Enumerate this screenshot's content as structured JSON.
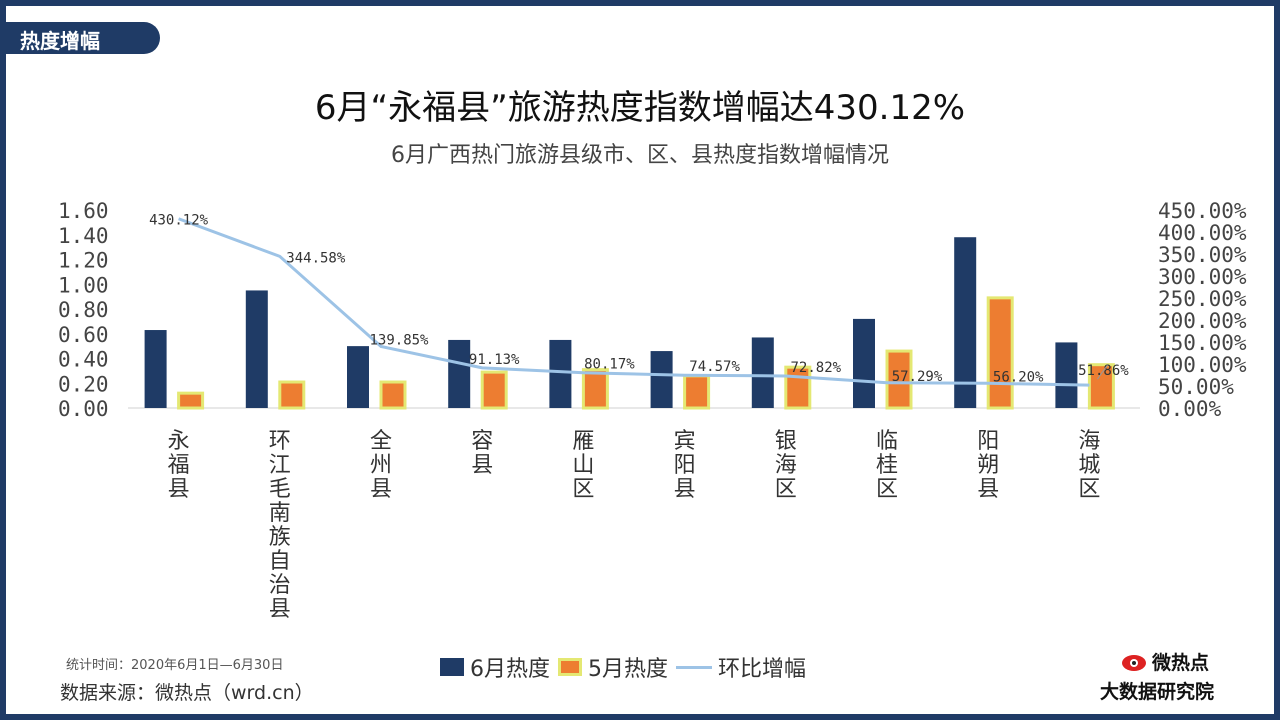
{
  "badge": "热度增幅",
  "title": "6月“永福县”旅游热度指数增幅达430.12%",
  "subtitle": "6月广西热门旅游县级市、区、县热度指数增幅情况",
  "footnote": "统计时间：2020年6月1日—6月30日",
  "source": "数据来源：微热点（wrd.cn）",
  "logo": {
    "brand": "微热点",
    "institute": "大数据研究院"
  },
  "legend": {
    "june": "6月热度",
    "may": "5月热度",
    "growth": "环比增幅"
  },
  "colors": {
    "june": "#1f3b66",
    "may": "#ed7d31",
    "may_border": "#e4e873",
    "growth": "#9dc3e6"
  },
  "chart_data": {
    "type": "bar",
    "categories": [
      "永福县",
      "环江毛南族自治县",
      "全州县",
      "容县",
      "雁山区",
      "宾阳县",
      "银海区",
      "临桂区",
      "阳朔县",
      "海城区"
    ],
    "series": [
      {
        "name": "6月热度",
        "axis": "left",
        "values": [
          0.63,
          0.95,
          0.5,
          0.55,
          0.55,
          0.46,
          0.57,
          0.72,
          1.38,
          0.53
        ]
      },
      {
        "name": "5月热度",
        "axis": "left",
        "values": [
          0.12,
          0.21,
          0.21,
          0.29,
          0.31,
          0.26,
          0.33,
          0.46,
          0.89,
          0.35
        ]
      },
      {
        "name": "环比增幅",
        "type": "line",
        "axis": "right",
        "values": [
          430.12,
          344.58,
          139.85,
          91.13,
          80.17,
          74.57,
          72.82,
          57.29,
          56.2,
          51.86
        ]
      }
    ],
    "data_labels": [
      "430.12%",
      "344.58%",
      "139.85%",
      "91.13%",
      "80.17%",
      "74.57%",
      "72.82%",
      "57.29%",
      "56.20%",
      "51.86%"
    ],
    "y_left": {
      "ylim": [
        0,
        1.6
      ],
      "ticks": [
        "0.00",
        "0.20",
        "0.40",
        "0.60",
        "0.80",
        "1.00",
        "1.20",
        "1.40",
        "1.60"
      ]
    },
    "y_right": {
      "ylim": [
        0,
        450
      ],
      "ticks": [
        "0.00%",
        "50.00%",
        "100.00%",
        "150.00%",
        "200.00%",
        "250.00%",
        "300.00%",
        "350.00%",
        "400.00%",
        "450.00%"
      ]
    },
    "grid": false,
    "legend_position": "bottom"
  }
}
